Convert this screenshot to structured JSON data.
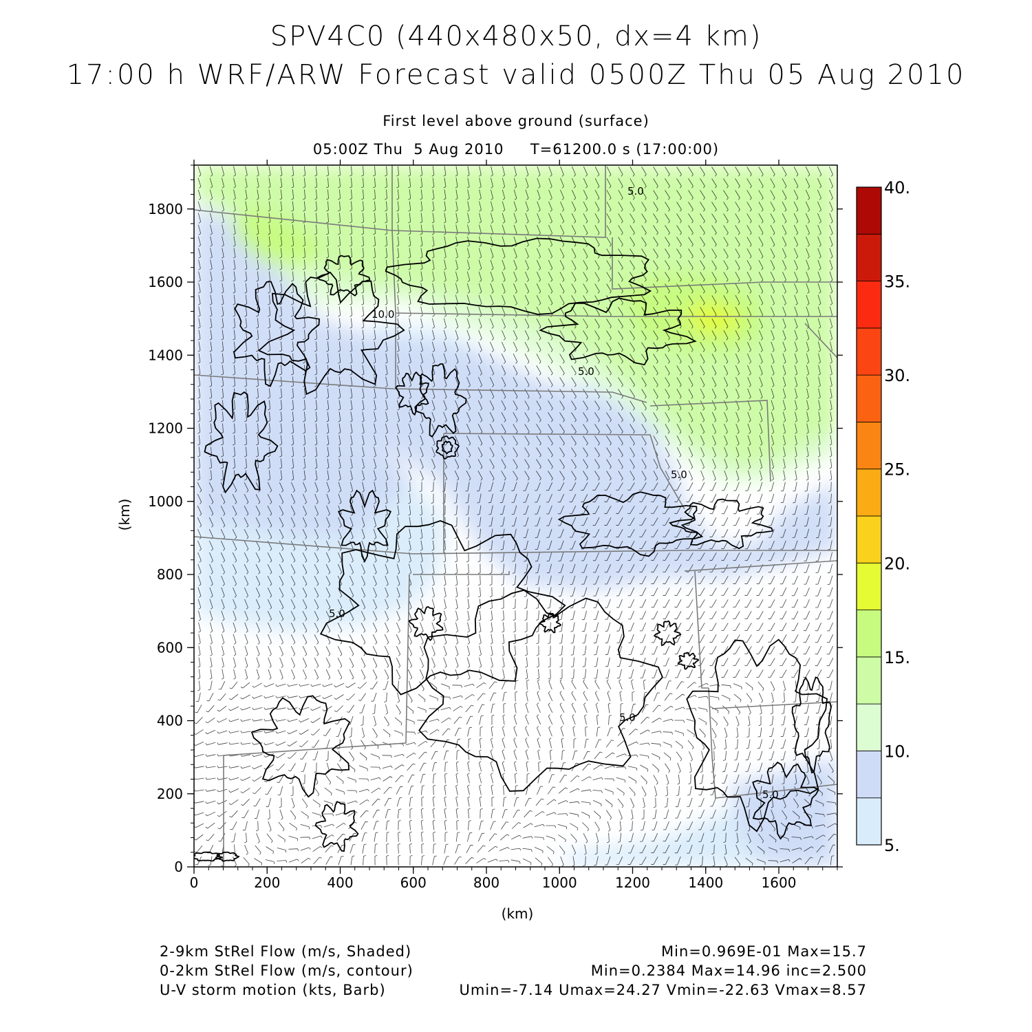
{
  "header": {
    "title_line1": "SPV4C0 (440x480x50, dx=4 km)",
    "title_line2": "17:00 h WRF/ARW Forecast valid 0500Z Thu 05 Aug 2010",
    "subtitle_line1": "First level above ground (surface)",
    "subtitle_line2": "05:00Z Thu  5 Aug 2010     T=61200.0 s (17:00:00)"
  },
  "chart_data": {
    "type": "heatmap",
    "xlabel": "(km)",
    "ylabel": "(km)",
    "xlim": [
      0,
      1760
    ],
    "ylim": [
      0,
      1920
    ],
    "x_ticks": [
      "0",
      "200",
      "400",
      "600",
      "800",
      "1000",
      "1200",
      "1400",
      "1600"
    ],
    "y_ticks": [
      "0",
      "200",
      "400",
      "600",
      "800",
      "1000",
      "1200",
      "1400",
      "1600",
      "1800"
    ],
    "colorbar": {
      "min": 5,
      "max": 40,
      "step": 2.5,
      "labels": [
        "5.",
        "10.",
        "15.",
        "20.",
        "25.",
        "30.",
        "35.",
        "40."
      ],
      "colors": [
        "#d9ecfb",
        "#cfdcf7",
        "#dcfcd2",
        "#cdfba6",
        "#c6fb80",
        "#e5fb33",
        "#fad11c",
        "#fbab14",
        "#fa8513",
        "#fb6312",
        "#fb4512",
        "#fa2b11",
        "#cc1a0a",
        "#ad0a05"
      ]
    },
    "contour_labels": [
      "5.0",
      "5.0",
      "5.0",
      "5.0",
      "5.0",
      "10.0",
      "5.0"
    ]
  },
  "footer": {
    "left": [
      "2-9km StRel Flow (m/s, Shaded)",
      "0-2km StRel Flow (m/s, contour)",
      "U-V storm motion (kts, Barb)"
    ],
    "right": [
      "Min=0.969E-01 Max=15.7",
      "Min=0.2384 Max=14.96 inc=2.500",
      "Umin=-7.14 Umax=24.27 Vmin=-22.63 Vmax=8.57"
    ]
  }
}
